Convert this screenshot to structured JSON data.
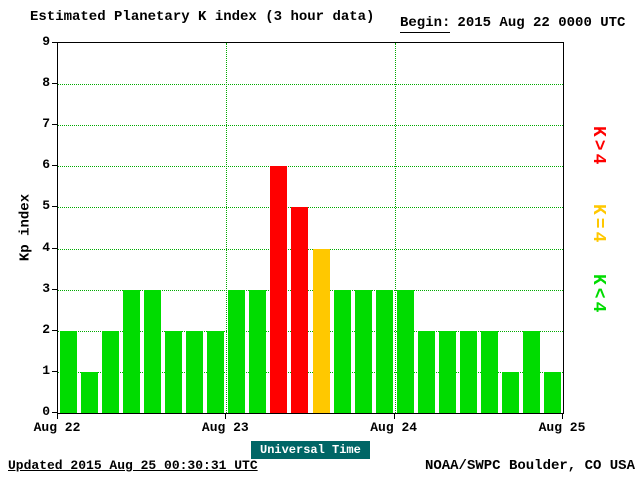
{
  "header": {
    "title": "Estimated Planetary K index (3 hour data)",
    "begin_label": "Begin:",
    "begin_value": "2015 Aug 22 0000 UTC"
  },
  "footer": {
    "updated": "Updated 2015 Aug 25 00:30:31 UTC",
    "source": "NOAA/SWPC Boulder, CO USA"
  },
  "legend": {
    "items": [
      {
        "label": "K>4",
        "color": "#ff0000"
      },
      {
        "label": "K=4",
        "color": "#ffc800"
      },
      {
        "label": "K<4",
        "color": "#00dc00"
      }
    ]
  },
  "chart_data": {
    "type": "bar",
    "title": "Estimated Planetary K index (3 hour data)",
    "begin": "2015 Aug 22 0000 UTC",
    "xlabel": "Universal Time",
    "ylabel": "Kp index",
    "ylim": [
      0,
      9
    ],
    "y_ticks": [
      0,
      1,
      2,
      3,
      4,
      5,
      6,
      7,
      8,
      9
    ],
    "x_tick_labels": [
      "Aug 22",
      "Aug 23",
      "Aug 24",
      "Aug 25"
    ],
    "hours_per_bar": 3,
    "bars_per_day": 8,
    "values": [
      2,
      1,
      2,
      3,
      3,
      2,
      2,
      2,
      3,
      3,
      6,
      5,
      4,
      3,
      3,
      3,
      3,
      2,
      2,
      2,
      2,
      1,
      2,
      1
    ],
    "color_rule": {
      "below_4": "#00dc00",
      "equal_4": "#ffc800",
      "above_4": "#ff0000"
    },
    "grid": "dotted-horizontal-and-day-boundaries",
    "legend_position": "right"
  }
}
